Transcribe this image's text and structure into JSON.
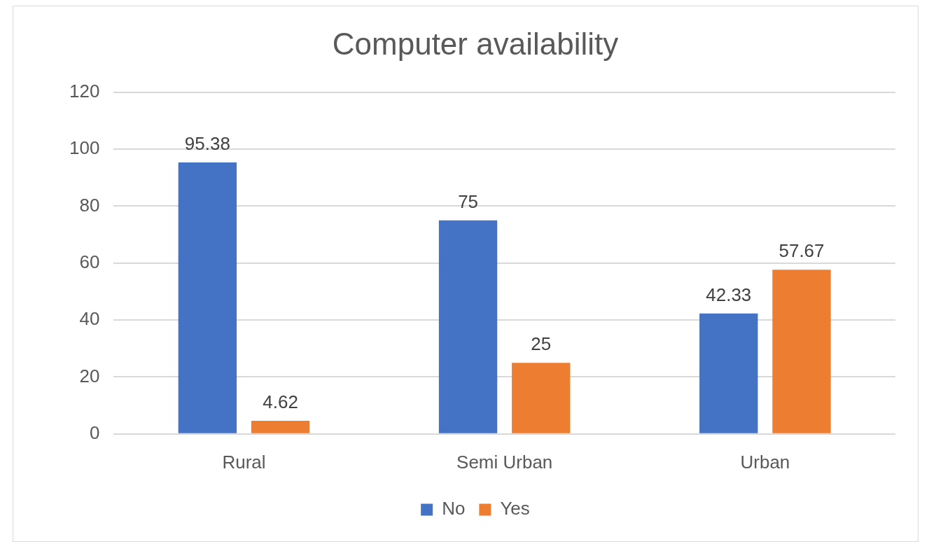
{
  "chart_data": {
    "type": "bar",
    "title": "Computer availability",
    "categories": [
      "Rural",
      "Semi Urban",
      "Urban"
    ],
    "series": [
      {
        "name": "No",
        "color": "#4472c4",
        "values": [
          95.38,
          75,
          42.33
        ]
      },
      {
        "name": "Yes",
        "color": "#ed7d31",
        "values": [
          4.62,
          25,
          57.67
        ]
      }
    ],
    "ylim": [
      0,
      120
    ],
    "yticks": [
      0,
      20,
      40,
      60,
      80,
      100,
      120
    ],
    "grid": "y",
    "legend": "bottom",
    "data_labels": true
  }
}
